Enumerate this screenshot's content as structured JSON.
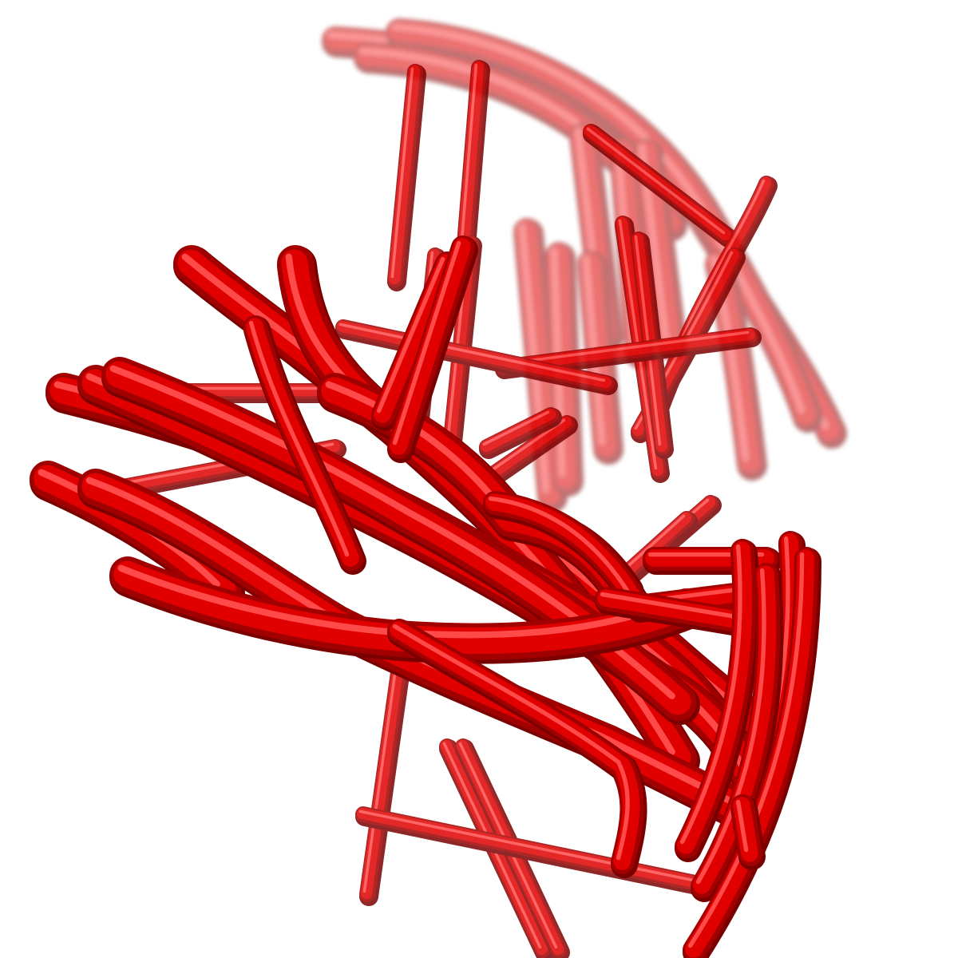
{
  "scene": {
    "background": "#ffffff",
    "colors": {
      "main": "#e00000",
      "light": "#ff4a4a",
      "dark": "#a00000",
      "shadow": "#7a0000"
    }
  }
}
